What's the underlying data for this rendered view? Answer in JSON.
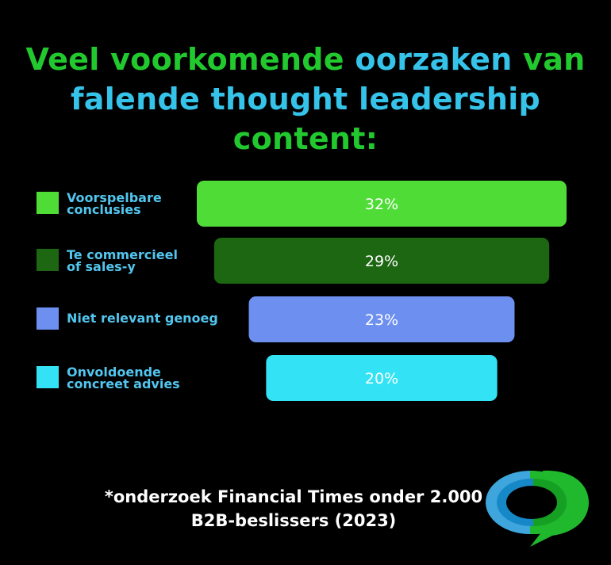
{
  "title": {
    "seg1": "Veel voorkomende ",
    "seg2": "oorzaken",
    "seg3": " van",
    "seg4": "falende thought leadership",
    "seg5": " content:"
  },
  "colors": {
    "title_green": "#22c92e",
    "title_cyan": "#35c3ea",
    "label_blue": "#52c6ee",
    "background": "#000000"
  },
  "chart_data": {
    "type": "bar",
    "orientation": "horizontal-centered",
    "categories": [
      "Voorspelbare conclusies",
      "Te commercieel of sales-y",
      "Niet relevant genoeg",
      "Onvoldoende concreet advies"
    ],
    "labels": [
      [
        "Voorspelbare",
        "conclusies"
      ],
      [
        "Te commercieel",
        "of sales-y"
      ],
      [
        "Niet relevant genoeg"
      ],
      [
        "Onvoldoende",
        "concreet advies"
      ]
    ],
    "values": [
      32,
      29,
      23,
      20
    ],
    "value_labels": [
      "32%",
      "29%",
      "23%",
      "20%"
    ],
    "colors": [
      "#4fdc37",
      "#1d6612",
      "#6c8ff0",
      "#33e3f5"
    ],
    "unit": "%"
  },
  "footnote": {
    "line1": "*onderzoek Financial Times onder 2.000",
    "line2": "B2B-beslissers (2023)"
  },
  "logo": {
    "icon": "speech-bubble-logo-icon"
  }
}
